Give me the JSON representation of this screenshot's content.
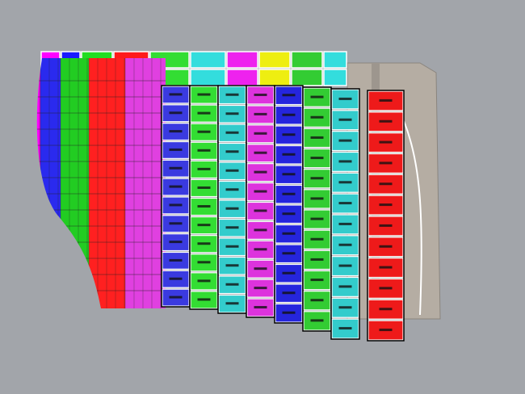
{
  "viewport": {
    "background_color": "#a2a5aa",
    "superstructure_color": "#b5ada3"
  },
  "model": {
    "top_row_colors": [
      "#ff00ff",
      "#1a1aff",
      "#22dd22",
      "#ff1a1a",
      "#33dd33",
      "#33dddd",
      "#ee22ee",
      "#eeee11",
      "#33cc33",
      "#33dddd"
    ],
    "hull_stripe_colors": [
      "#ff00ff",
      "#2a2aee",
      "#22cc22",
      "#ff2020",
      "#e040e0"
    ],
    "front_column_colors": [
      "#3a3ae0",
      "#33dd33",
      "#33cccc",
      "#dd33dd",
      "#2525dd",
      "#33cc33",
      "#33cccc",
      "#ee1a1a"
    ],
    "panel_rows": 12
  }
}
